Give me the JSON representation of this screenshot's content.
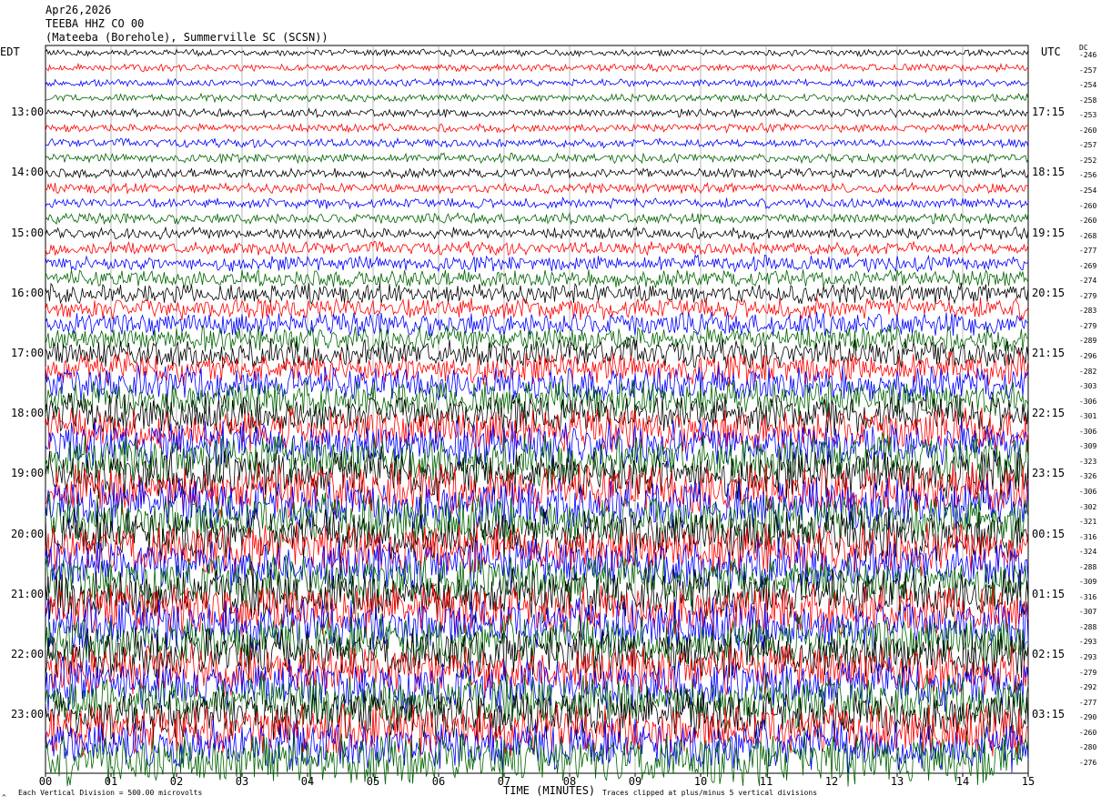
{
  "header": {
    "date": "Apr26,2026",
    "station": "TEEBA HHZ CO 00",
    "location": "(Mateeba (Borehole), Summerville SC (SCSN))"
  },
  "left_timezone": "EDT",
  "right_timezone": "UTC",
  "dc_label": "DC",
  "footer": {
    "scale_note": "Each Vertical Division =  500.00 microvolts",
    "clip_note": "Traces clipped at plus/minus 5 vertical divisions",
    "corner_mark": "^"
  },
  "chart_data": {
    "type": "line",
    "title": "",
    "xlabel": "TIME (MINUTES)",
    "xlim": [
      0,
      15
    ],
    "x_ticks": [
      "00",
      "01",
      "02",
      "03",
      "04",
      "05",
      "06",
      "07",
      "08",
      "09",
      "10",
      "11",
      "12",
      "13",
      "14",
      "15"
    ],
    "rows_per_hour": 4,
    "row_count": 48,
    "trace_colors": [
      "#000000",
      "#ff0000",
      "#0000ff",
      "#006400"
    ],
    "left_labels": [
      {
        "row": 4,
        "text": "13:00"
      },
      {
        "row": 8,
        "text": "14:00"
      },
      {
        "row": 12,
        "text": "15:00"
      },
      {
        "row": 16,
        "text": "16:00"
      },
      {
        "row": 20,
        "text": "17:00"
      },
      {
        "row": 24,
        "text": "18:00"
      },
      {
        "row": 28,
        "text": "19:00"
      },
      {
        "row": 32,
        "text": "20:00"
      },
      {
        "row": 36,
        "text": "21:00"
      },
      {
        "row": 40,
        "text": "22:00"
      },
      {
        "row": 44,
        "text": "23:00"
      }
    ],
    "right_labels": [
      {
        "row": 4,
        "text": "17:15"
      },
      {
        "row": 8,
        "text": "18:15"
      },
      {
        "row": 12,
        "text": "19:15"
      },
      {
        "row": 16,
        "text": "20:15"
      },
      {
        "row": 20,
        "text": "21:15"
      },
      {
        "row": 24,
        "text": "22:15"
      },
      {
        "row": 28,
        "text": "23:15"
      },
      {
        "row": 32,
        "text": "00:15"
      },
      {
        "row": 36,
        "text": "01:15"
      },
      {
        "row": 40,
        "text": "02:15"
      },
      {
        "row": 44,
        "text": "03:15"
      }
    ],
    "dc_offsets": [
      -246,
      -257,
      -254,
      -258,
      -253,
      -260,
      -257,
      -252,
      -256,
      -254,
      -260,
      -260,
      -268,
      -277,
      -269,
      -274,
      -279,
      -283,
      -279,
      -289,
      -296,
      -282,
      -303,
      -306,
      -301,
      -306,
      -309,
      -323,
      -326,
      -306,
      -302,
      -321,
      -316,
      -324,
      -288,
      -309,
      -316,
      -307,
      -288,
      -293,
      -293,
      -279,
      -292,
      -277,
      -290,
      -260,
      -280,
      -276
    ]
  }
}
